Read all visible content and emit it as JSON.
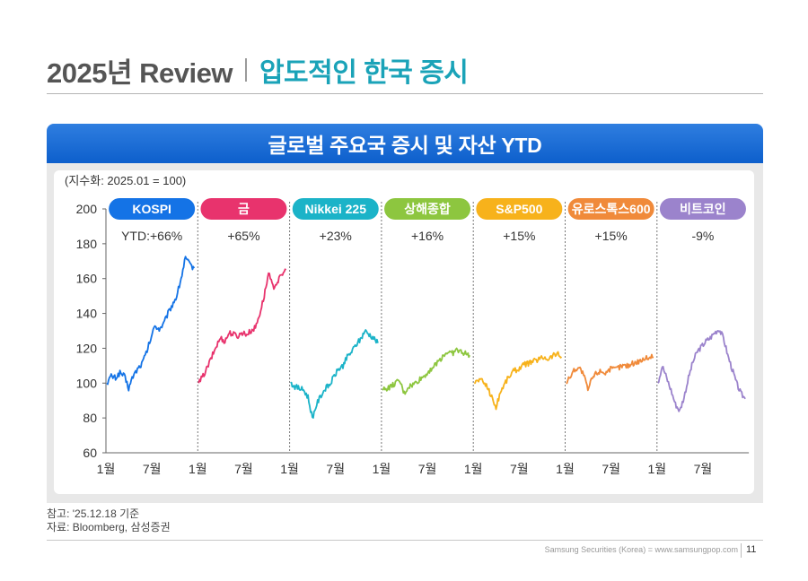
{
  "header": {
    "title": "2025년 Review",
    "subtitle": "압도적인 한국 증시"
  },
  "banner": {
    "title": "글로벌 주요국 증시 및 자산 YTD"
  },
  "notes": {
    "line1": "참고: '25.12.18 기준",
    "line2": "자료: Bloomberg, 삼성증권"
  },
  "footer": {
    "text": "Samsung Securities (Korea) = www.samsungpop.com",
    "page": "11"
  },
  "chart_data": {
    "type": "line",
    "unit_label": "(지수화: 2025.01 = 100)",
    "ylim": [
      60,
      200
    ],
    "yticks": [
      60,
      80,
      100,
      120,
      140,
      160,
      180,
      200
    ],
    "xtick_labels": [
      "1월",
      "7월"
    ],
    "final_xtick_label": "1월",
    "colors": {
      "KOSPI": "#1473e6",
      "금": "#e8336d",
      "Nikkei 225": "#1bb3c8",
      "상해종합": "#8dc63f",
      "S&P500": "#f7b21b",
      "유로스톡스600": "#f08a3a",
      "비트코인": "#9b83cc"
    },
    "series": [
      {
        "name": "KOSPI",
        "ytd_label": "YTD:+66%",
        "values": [
          100,
          104,
          103,
          106,
          104,
          97,
          104,
          108,
          111,
          117,
          125,
          133,
          131,
          134,
          140,
          145,
          150,
          160,
          172,
          168,
          166
        ]
      },
      {
        "name": "금",
        "ytd_label": "+65%",
        "values": [
          100,
          104,
          109,
          115,
          121,
          126,
          124,
          129,
          128,
          127,
          129,
          128,
          130,
          132,
          140,
          150,
          163,
          155,
          158,
          162,
          165
        ]
      },
      {
        "name": "Nikkei 225",
        "ytd_label": "+23%",
        "values": [
          100,
          98,
          97,
          96,
          92,
          80,
          88,
          93,
          97,
          99,
          104,
          108,
          110,
          115,
          118,
          122,
          125,
          130,
          128,
          126,
          123
        ]
      },
      {
        "name": "상해종합",
        "ytd_label": "+16%",
        "values": [
          96,
          97,
          98,
          100,
          101,
          94,
          98,
          99,
          101,
          103,
          105,
          108,
          110,
          113,
          116,
          118,
          117,
          119,
          118,
          117,
          116
        ]
      },
      {
        "name": "S&P500",
        "ytd_label": "+15%",
        "values": [
          100,
          102,
          101,
          98,
          92,
          86,
          95,
          100,
          104,
          107,
          108,
          110,
          111,
          112,
          113,
          114,
          115,
          114,
          116,
          117,
          115
        ]
      },
      {
        "name": "유로스톡스600",
        "ytd_label": "+15%",
        "values": [
          100,
          104,
          108,
          109,
          105,
          96,
          103,
          106,
          107,
          106,
          108,
          108,
          109,
          110,
          110,
          111,
          112,
          113,
          114,
          115,
          115
        ]
      },
      {
        "name": "비트코인",
        "ytd_label": "-9%",
        "values": [
          100,
          110,
          103,
          96,
          88,
          84,
          92,
          103,
          112,
          118,
          121,
          124,
          126,
          129,
          131,
          126,
          116,
          108,
          100,
          94,
          91
        ]
      }
    ]
  }
}
